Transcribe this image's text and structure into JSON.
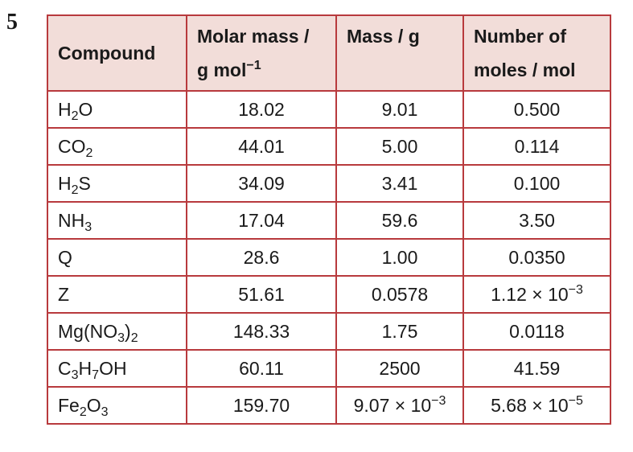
{
  "question_number": "5",
  "headers": {
    "compound": "Compound",
    "molar_mass_line1": "Molar mass /",
    "molar_mass_unit": "g mol",
    "molar_mass_exp": "−1",
    "mass": "Mass / g",
    "moles_line1": "Number of",
    "moles_line2": "moles / mol"
  },
  "rows": [
    {
      "formula": [
        {
          "t": "H"
        },
        {
          "s": "2"
        },
        {
          "t": "O"
        }
      ],
      "molar_mass": "18.02",
      "mass": "9.01",
      "moles": "0.500"
    },
    {
      "formula": [
        {
          "t": "CO"
        },
        {
          "s": "2"
        }
      ],
      "molar_mass": "44.01",
      "mass": "5.00",
      "moles": "0.114"
    },
    {
      "formula": [
        {
          "t": "H"
        },
        {
          "s": "2"
        },
        {
          "t": "S"
        }
      ],
      "molar_mass": "34.09",
      "mass": "3.41",
      "moles": "0.100"
    },
    {
      "formula": [
        {
          "t": "NH"
        },
        {
          "s": "3"
        }
      ],
      "molar_mass": "17.04",
      "mass": "59.6",
      "moles": "3.50"
    },
    {
      "formula": [
        {
          "t": "Q"
        }
      ],
      "molar_mass": "28.6",
      "mass": "1.00",
      "moles": "0.0350"
    },
    {
      "formula": [
        {
          "t": "Z"
        }
      ],
      "molar_mass": "51.61",
      "mass": "0.0578",
      "moles": "1.12 × 10",
      "moles_exp": "−3"
    },
    {
      "formula": [
        {
          "t": "Mg(NO"
        },
        {
          "s": "3"
        },
        {
          "t": ")"
        },
        {
          "s": "2"
        }
      ],
      "molar_mass": "148.33",
      "mass": "1.75",
      "moles": "0.0118"
    },
    {
      "formula": [
        {
          "t": "C"
        },
        {
          "s": "3"
        },
        {
          "t": "H"
        },
        {
          "s": "7"
        },
        {
          "t": "OH"
        }
      ],
      "molar_mass": "60.11",
      "mass": "2500",
      "moles": "41.59"
    },
    {
      "formula": [
        {
          "t": "Fe"
        },
        {
          "s": "2"
        },
        {
          "t": "O"
        },
        {
          "s": "3"
        }
      ],
      "molar_mass": "159.70",
      "mass": "9.07 × 10",
      "mass_exp": "−3",
      "moles": "5.68 × 10",
      "moles_exp": "−5"
    }
  ]
}
